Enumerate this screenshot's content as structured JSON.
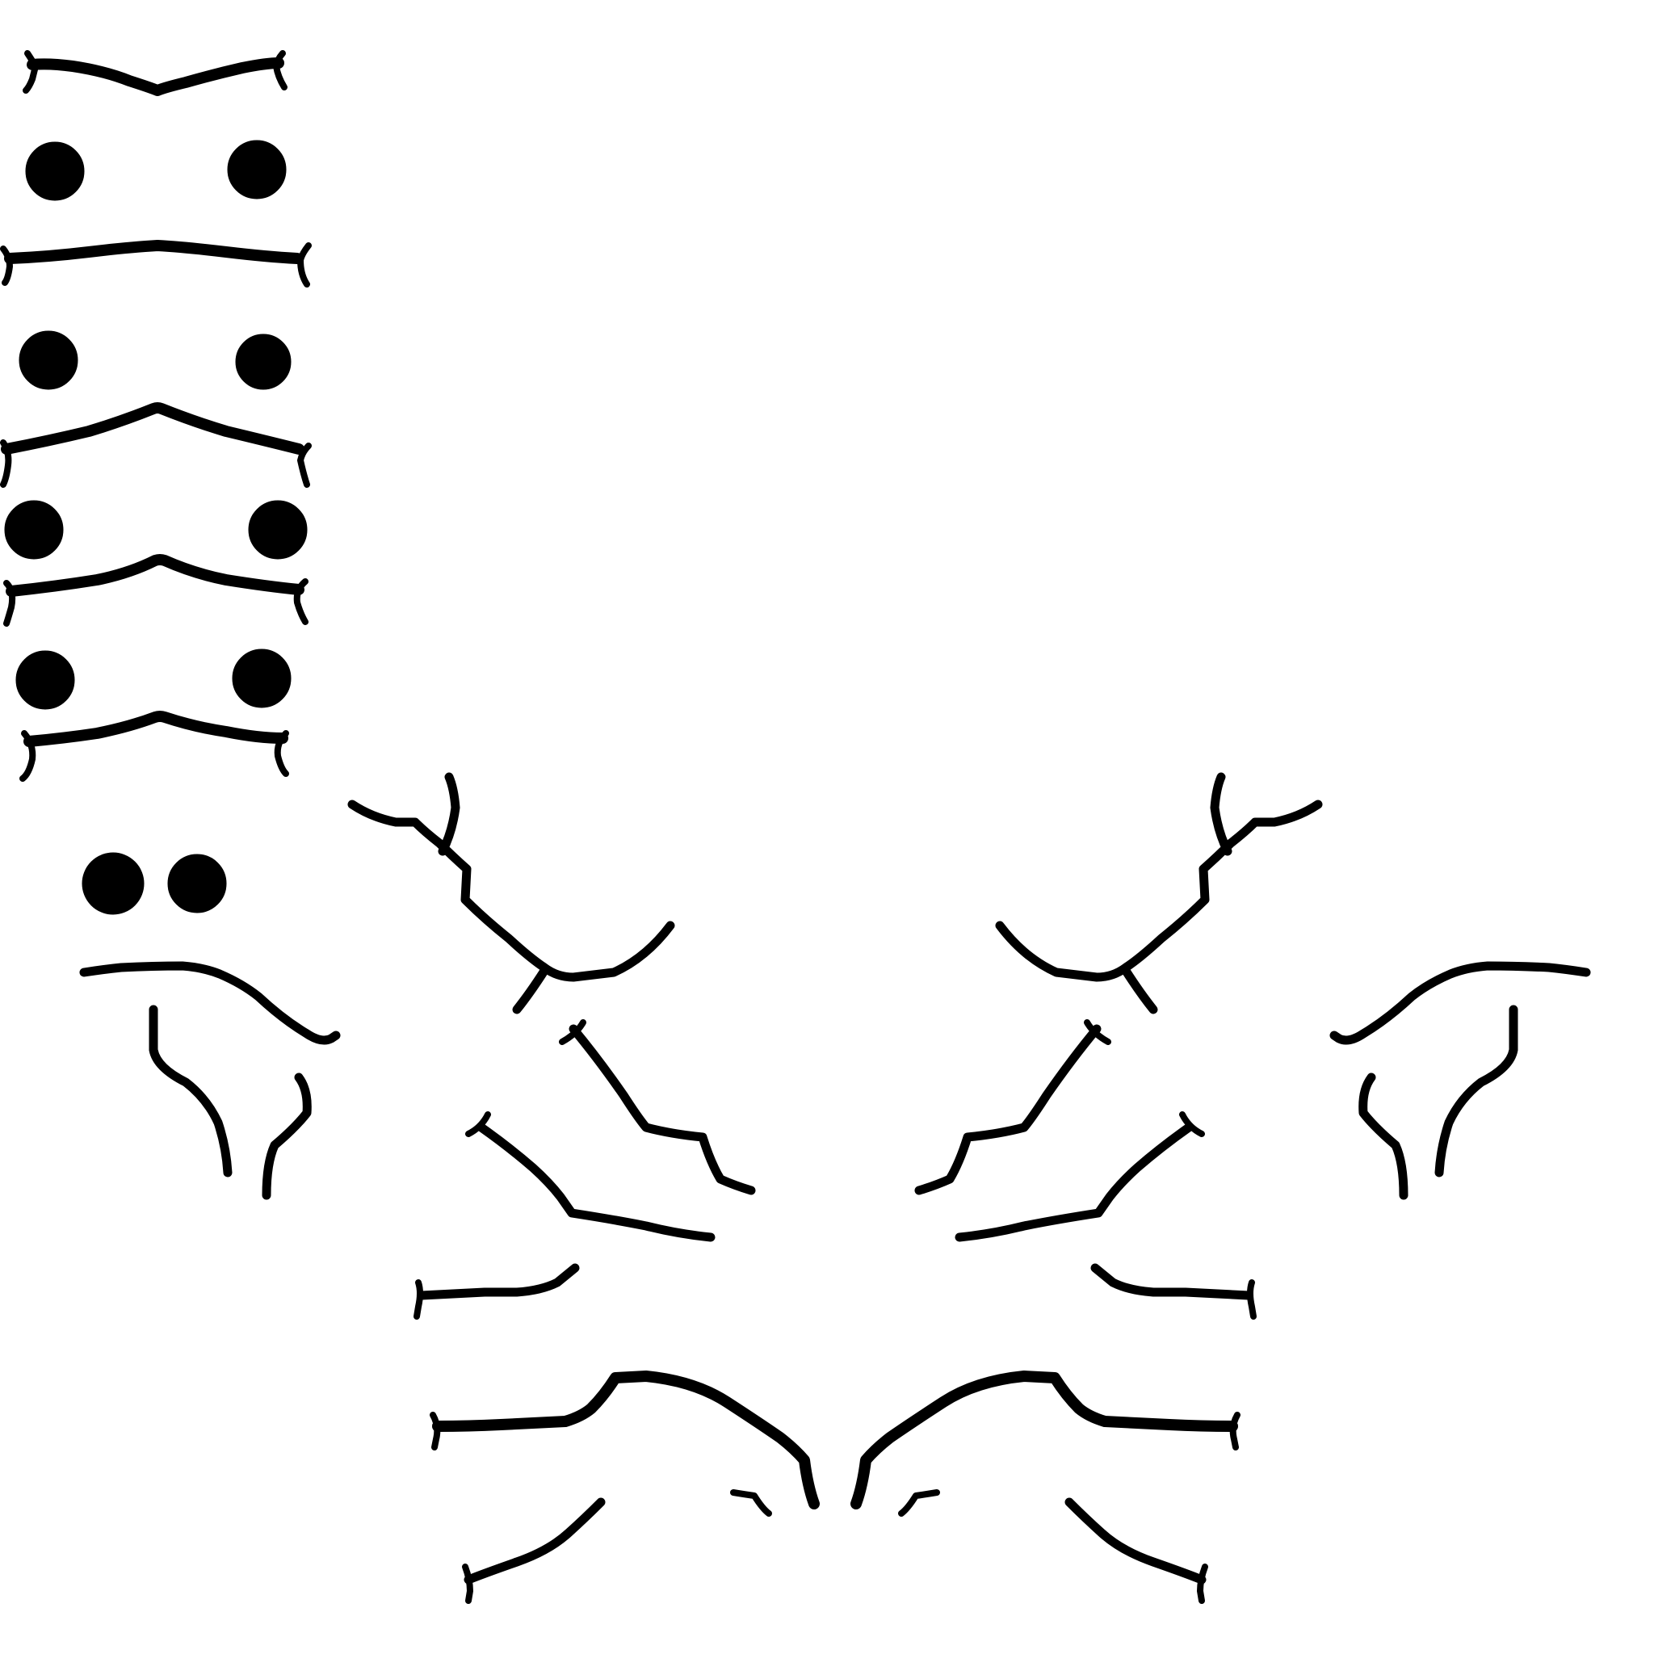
{
  "colors": {
    "background": "#ffffff",
    "ink": "#000000"
  },
  "sprite_sheet": {
    "left_column": [
      {
        "piece": "arch-bar",
        "variant": "dip-center"
      },
      {
        "piece": "dot-pair"
      },
      {
        "piece": "arch-bar",
        "variant": "flat"
      },
      {
        "piece": "dot-pair"
      },
      {
        "piece": "arch-bar",
        "variant": "peak-center"
      },
      {
        "piece": "dot-pair"
      },
      {
        "piece": "arch-bar",
        "variant": "peak-center"
      },
      {
        "piece": "dot-pair"
      },
      {
        "piece": "arch-bar",
        "variant": "peak-center"
      },
      {
        "piece": "dot-pair",
        "variant": "close"
      }
    ],
    "scattered_parts": [
      {
        "piece": "antler-left"
      },
      {
        "piece": "antler-right"
      },
      {
        "piece": "eyebrow-hook-left"
      },
      {
        "piece": "eyebrow-hook-right"
      },
      {
        "piece": "cheek-curve-left"
      },
      {
        "piece": "cheek-curve-right"
      },
      {
        "piece": "branch-left-upper"
      },
      {
        "piece": "branch-right-upper"
      },
      {
        "piece": "branch-left-lower"
      },
      {
        "piece": "branch-right-lower"
      },
      {
        "piece": "short-bar-left"
      },
      {
        "piece": "short-bar-right"
      },
      {
        "piece": "mustache-left"
      },
      {
        "piece": "mustache-right"
      },
      {
        "piece": "tail-left"
      },
      {
        "piece": "tail-right"
      }
    ]
  }
}
